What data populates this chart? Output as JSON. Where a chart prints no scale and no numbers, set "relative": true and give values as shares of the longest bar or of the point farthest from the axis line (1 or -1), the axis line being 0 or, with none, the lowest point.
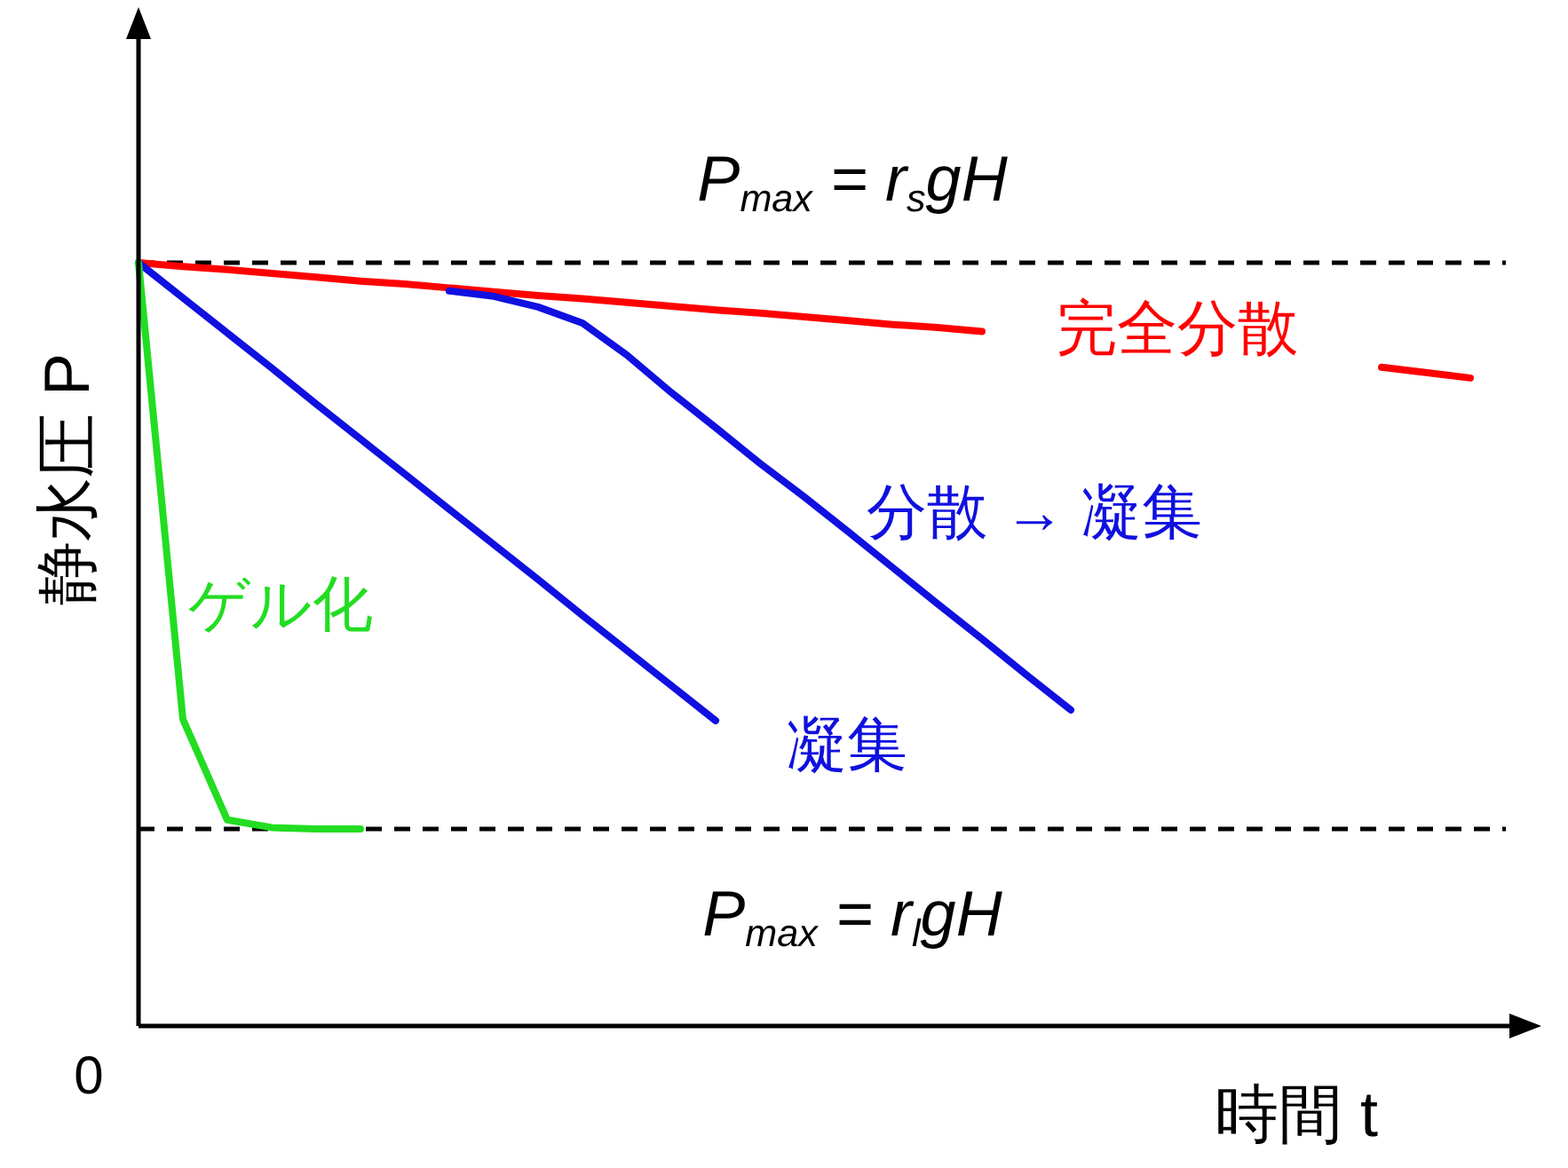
{
  "chart_data": {
    "type": "line",
    "relative": true,
    "xlabel": "時間 t",
    "ylabel": "静水圧 P",
    "legend": false,
    "marker": "none",
    "line_style": "solid",
    "categories": [
      null,
      null,
      null,
      null,
      null,
      null,
      null,
      null,
      null,
      null,
      null,
      null,
      null,
      null,
      null,
      null,
      null,
      null,
      null,
      null,
      null,
      null,
      null,
      null,
      null,
      null,
      null,
      null,
      null,
      null,
      null
    ],
    "series": [
      {
        "name": "完全分散",
        "color": "#ff0000",
        "values": [
          1,
          0.995,
          0.991,
          0.986,
          0.981,
          0.976,
          0.972,
          0.967,
          0.962,
          0.957,
          0.953,
          0.948,
          0.943,
          0.938,
          0.934,
          0.929,
          0.924,
          0.919,
          0.915,
          0.91,
          null,
          null,
          null,
          null,
          null,
          null,
          null,
          null,
          0.863,
          0.856,
          0.849
        ]
      },
      {
        "name": "凝集",
        "color": "#1010e0",
        "values": [
          1,
          0.954,
          0.908,
          0.862,
          0.815,
          0.769,
          0.723,
          0.677,
          0.631,
          0.585,
          0.538,
          0.492,
          0.446,
          0.4,
          null,
          null,
          null,
          null,
          null,
          null,
          null,
          null,
          null,
          null,
          null,
          null,
          null,
          null,
          null,
          null,
          null
        ]
      },
      {
        "name": "分散 → 凝集",
        "color": "#1010e0",
        "values": [
          null,
          null,
          null,
          null,
          null,
          null,
          null,
          0.963,
          0.956,
          0.942,
          0.921,
          0.879,
          0.83,
          0.784,
          0.737,
          0.693,
          0.647,
          0.6,
          0.553,
          0.507,
          0.46,
          0.414,
          null,
          null,
          null,
          null,
          null,
          null,
          null,
          null,
          null
        ]
      },
      {
        "name": "ゲル化",
        "color": "#22dd22",
        "values": [
          1,
          0.402,
          0.27,
          0.26,
          0.258,
          0.258,
          null,
          null,
          null,
          null,
          null,
          null,
          null,
          null,
          null,
          null,
          null,
          null,
          null,
          null,
          null,
          null,
          null,
          null,
          null,
          null,
          null,
          null,
          null,
          null,
          null
        ]
      }
    ],
    "ref_lines": [
      {
        "axis": "y",
        "value": 1,
        "label": "P$_{max}$ = r$_{s}$gH",
        "color": "#000000",
        "line_style": "dashed"
      },
      {
        "axis": "y",
        "value": 0.258,
        "label": "P$_{max}$ = r$_{l}$gH",
        "color": "#000000",
        "line_style": "dashed"
      }
    ],
    "annotations": [
      "0"
    ]
  }
}
